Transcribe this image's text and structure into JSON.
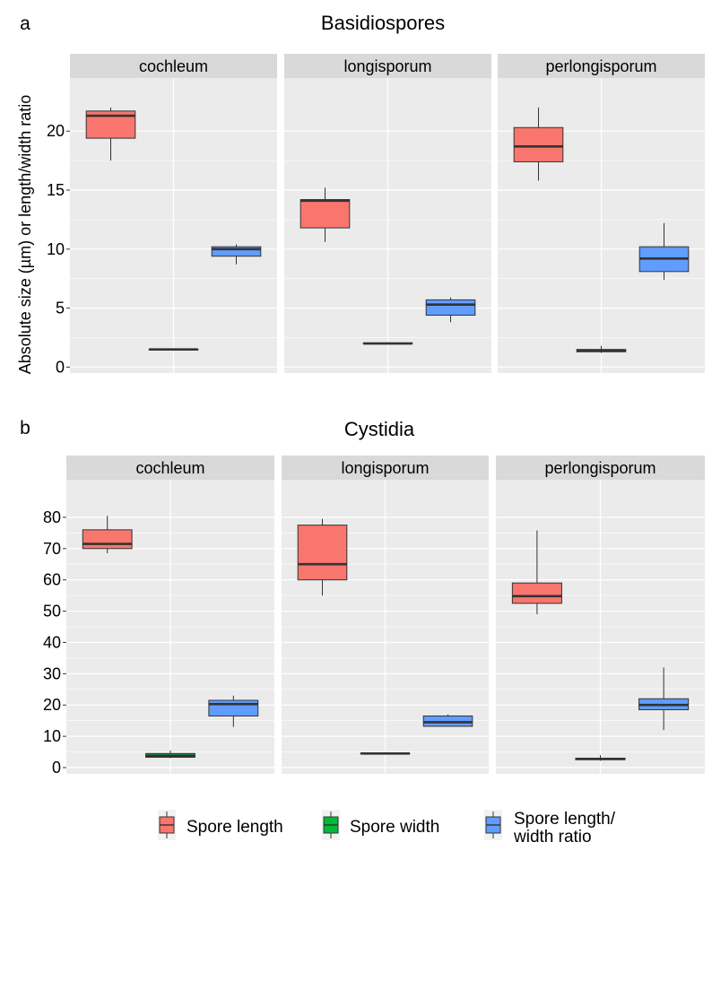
{
  "chart_data": [
    {
      "type": "box",
      "panel_label": "a",
      "title": "Basidiospores",
      "ylabel": "Absolute size (µm) or length/width ratio",
      "ylim": [
        -0.5,
        24.5
      ],
      "yticks": [
        0,
        5,
        10,
        15,
        20
      ],
      "grid": true,
      "facets": [
        {
          "name": "cochleum",
          "boxes": [
            {
              "series": "Spore length",
              "min": 17.5,
              "q1": 19.4,
              "median": 21.3,
              "q3": 21.7,
              "max": 22.0
            },
            {
              "series": "Spore width",
              "min": 1.5,
              "q1": 1.5,
              "median": 1.5,
              "q3": 1.5,
              "max": 1.5
            },
            {
              "series": "Spore length/ width ratio",
              "min": 8.7,
              "q1": 9.4,
              "median": 10.0,
              "q3": 10.2,
              "max": 10.4
            }
          ]
        },
        {
          "name": "longisporum",
          "boxes": [
            {
              "series": "Spore length",
              "min": 10.6,
              "q1": 11.8,
              "median": 14.1,
              "q3": 14.2,
              "max": 15.2
            },
            {
              "series": "Spore width",
              "min": 2.0,
              "q1": 2.0,
              "median": 2.0,
              "q3": 2.05,
              "max": 2.1
            },
            {
              "series": "Spore length/ width ratio",
              "min": 3.8,
              "q1": 4.4,
              "median": 5.3,
              "q3": 5.7,
              "max": 5.9
            }
          ]
        },
        {
          "name": "perlongisporum",
          "boxes": [
            {
              "series": "Spore length",
              "min": 15.8,
              "q1": 17.4,
              "median": 18.7,
              "q3": 20.3,
              "max": 22.0
            },
            {
              "series": "Spore width",
              "min": 1.2,
              "q1": 1.3,
              "median": 1.4,
              "q3": 1.5,
              "max": 1.8
            },
            {
              "series": "Spore length/ width ratio",
              "min": 7.4,
              "q1": 8.1,
              "median": 9.2,
              "q3": 10.2,
              "max": 12.2
            }
          ]
        }
      ]
    },
    {
      "type": "box",
      "panel_label": "b",
      "title": "Cystidia",
      "ylabel": "",
      "ylim": [
        -2,
        92
      ],
      "yticks": [
        0,
        10,
        20,
        30,
        40,
        50,
        60,
        70,
        80
      ],
      "grid": true,
      "facets": [
        {
          "name": "cochleum",
          "boxes": [
            {
              "series": "Spore length",
              "min": 68.5,
              "q1": 70.0,
              "median": 71.5,
              "q3": 76.0,
              "max": 80.5
            },
            {
              "series": "Spore width",
              "min": 3.0,
              "q1": 3.3,
              "median": 3.8,
              "q3": 4.5,
              "max": 5.5
            },
            {
              "series": "Spore length/ width ratio",
              "min": 13.0,
              "q1": 16.5,
              "median": 20.3,
              "q3": 21.5,
              "max": 23.0
            }
          ]
        },
        {
          "name": "longisporum",
          "boxes": [
            {
              "series": "Spore length",
              "min": 55.0,
              "q1": 60.0,
              "median": 65.0,
              "q3": 77.5,
              "max": 79.5
            },
            {
              "series": "Spore width",
              "min": 4.5,
              "q1": 4.5,
              "median": 4.5,
              "q3": 4.6,
              "max": 4.7
            },
            {
              "series": "Spore length/ width ratio",
              "min": 13.0,
              "q1": 13.2,
              "median": 14.5,
              "q3": 16.5,
              "max": 17.0
            }
          ]
        },
        {
          "name": "perlongisporum",
          "boxes": [
            {
              "series": "Spore length",
              "min": 49.0,
              "q1": 52.5,
              "median": 54.8,
              "q3": 59.0,
              "max": 75.8
            },
            {
              "series": "Spore width",
              "min": 2.2,
              "q1": 2.5,
              "median": 2.8,
              "q3": 3.0,
              "max": 4.0
            },
            {
              "series": "Spore length/ width ratio",
              "min": 12.0,
              "q1": 18.5,
              "median": 20.0,
              "q3": 22.0,
              "max": 32.0
            }
          ]
        }
      ]
    }
  ],
  "legend": {
    "position": "bottom",
    "items": [
      {
        "label": "Spore length",
        "lines": [
          "Spore length"
        ],
        "color": "#F8766D"
      },
      {
        "label": "Spore width",
        "lines": [
          "Spore width"
        ],
        "color": "#00BA38"
      },
      {
        "label": "Spore length/ width ratio",
        "lines": [
          "Spore length/",
          " width ratio"
        ],
        "color": "#619CFF"
      }
    ]
  },
  "colors": {
    "panel_background": "#EBEBEB",
    "strip_background": "#D9D9D9",
    "gridline": "#FFFFFF",
    "box_outline": "#333333"
  }
}
